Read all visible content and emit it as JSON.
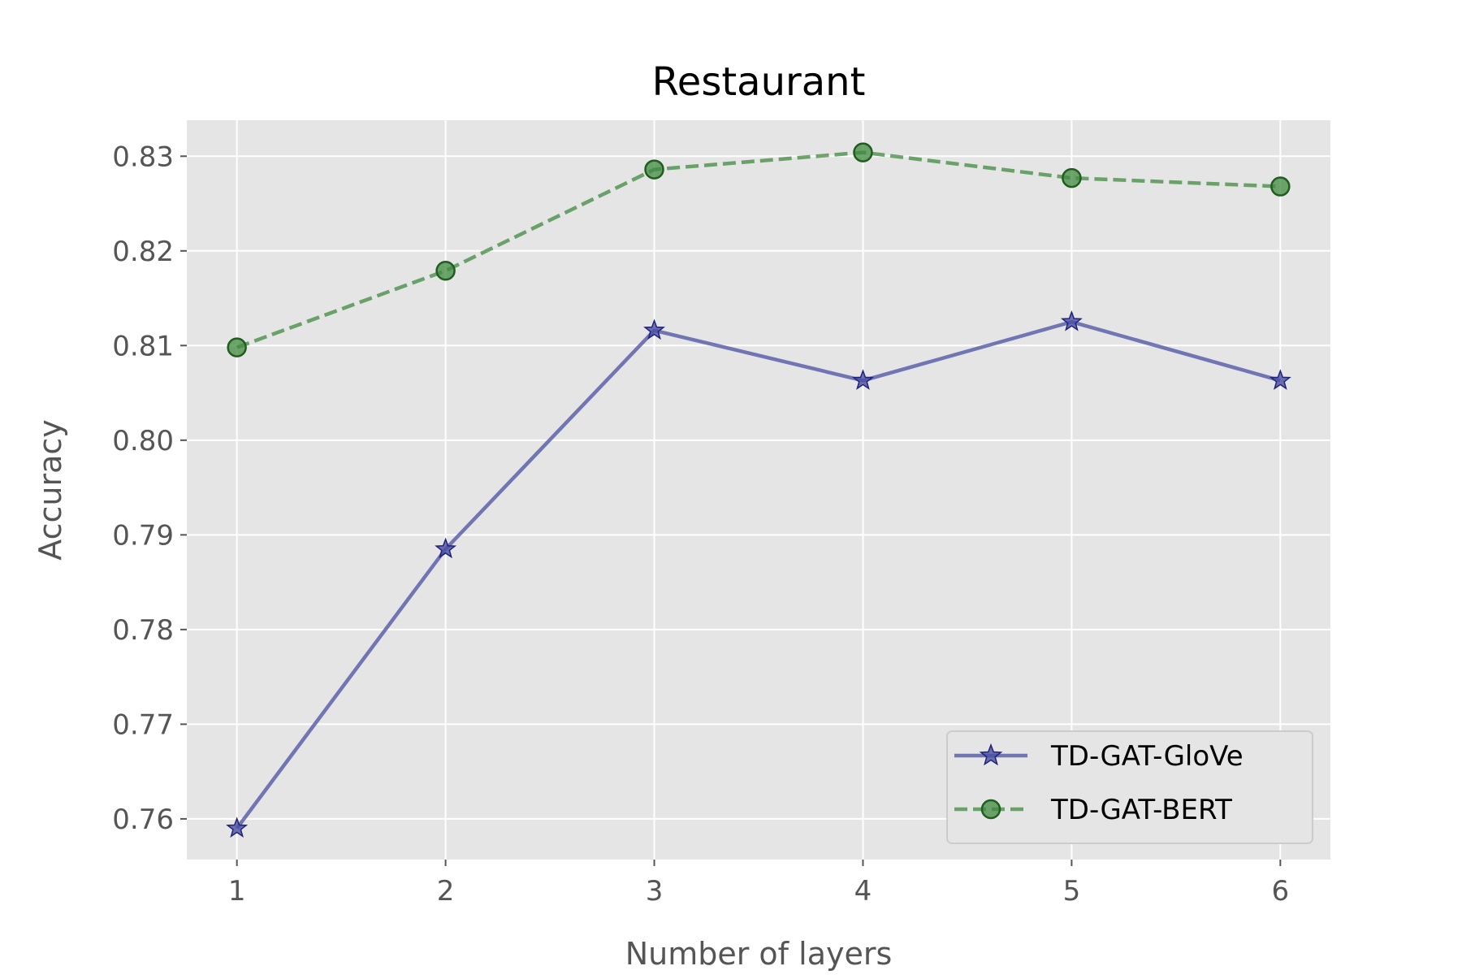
{
  "chart_data": {
    "type": "line",
    "title": "Restaurant",
    "xlabel": "Number of layers",
    "ylabel": "Accuracy",
    "x": [
      1,
      2,
      3,
      4,
      5,
      6
    ],
    "xticks": [
      "1",
      "2",
      "3",
      "4",
      "5",
      "6"
    ],
    "yticks": [
      "0.76",
      "0.77",
      "0.78",
      "0.79",
      "0.80",
      "0.81",
      "0.82",
      "0.83"
    ],
    "xlim": [
      0.76,
      6.24
    ],
    "ylim": [
      0.7557,
      0.8338
    ],
    "grid": true,
    "legend_position": "lower-right",
    "series": [
      {
        "name": "TD-GAT-GloVe",
        "values": [
          0.759,
          0.7885,
          0.8116,
          0.8063,
          0.8125,
          0.8063
        ],
        "color": "#4a4fa3",
        "linestyle": "solid",
        "marker": "star"
      },
      {
        "name": "TD-GAT-BERT",
        "values": [
          0.8098,
          0.8179,
          0.8286,
          0.8304,
          0.8277,
          0.8268
        ],
        "color": "#3f8a3f",
        "linestyle": "dashed",
        "marker": "circle"
      }
    ]
  }
}
